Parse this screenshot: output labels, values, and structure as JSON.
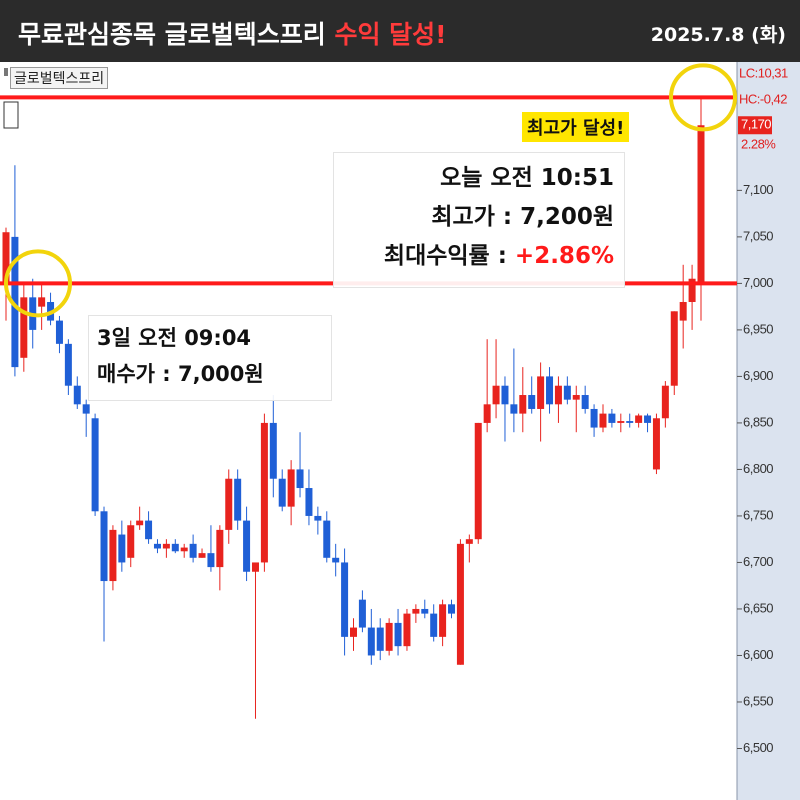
{
  "header": {
    "title_main": "무료관심종목 글로벌텍스프리",
    "title_highlight": "수익 달성!",
    "date": "2025.7.8 (화)"
  },
  "chart_data": {
    "type": "candlestick",
    "tab_label": "글로벌텍스프리",
    "ylim": [
      6450,
      7238
    ],
    "yticks": [
      {
        "value": 6500,
        "label": "6,500"
      },
      {
        "value": 6550,
        "label": "6,550"
      },
      {
        "value": 6600,
        "label": "6,600"
      },
      {
        "value": 6650,
        "label": "6,650"
      },
      {
        "value": 6700,
        "label": "6,700"
      },
      {
        "value": 6750,
        "label": "6,750"
      },
      {
        "value": 6800,
        "label": "6,800"
      },
      {
        "value": 6850,
        "label": "6,850"
      },
      {
        "value": 6900,
        "label": "6,900"
      },
      {
        "value": 6950,
        "label": "6,950"
      },
      {
        "value": 7000,
        "label": "7,000"
      },
      {
        "value": 7050,
        "label": "7,050"
      },
      {
        "value": 7100,
        "label": "7,100"
      }
    ],
    "up_color": "#e8231e",
    "down_color": "#1f5fd6",
    "series": {
      "open": [
        7000,
        7050,
        6920,
        6985,
        6975,
        6980,
        6960,
        6935,
        6890,
        6870,
        6855,
        6755,
        6680,
        6730,
        6705,
        6740,
        6745,
        6720,
        6715,
        6720,
        6712,
        6720,
        6705,
        6710,
        6695,
        6735,
        6790,
        6745,
        6690,
        6700,
        6850,
        6790,
        6760,
        6800,
        6780,
        6750,
        6745,
        6705,
        6700,
        6620,
        6660,
        6630,
        6630,
        6605,
        6635,
        6610,
        6645,
        6650,
        6645,
        6620,
        6655,
        6590,
        6720,
        6725,
        6850,
        6870,
        6890,
        6870,
        6860,
        6880,
        6865,
        6900,
        6870,
        6890,
        6875,
        6880,
        6865,
        6845,
        6860,
        6850,
        6852,
        6850,
        6858,
        6800,
        6855,
        6890,
        6960,
        6980,
        7000
      ],
      "high": [
        7060,
        7127,
        7000,
        7005,
        7000,
        6990,
        6965,
        6940,
        6900,
        6875,
        6860,
        6760,
        6740,
        6745,
        6745,
        6760,
        6755,
        6725,
        6725,
        6725,
        6720,
        6730,
        6715,
        6740,
        6740,
        6800,
        6800,
        6760,
        6700,
        6860,
        6880,
        6800,
        6810,
        6840,
        6800,
        6760,
        6755,
        6720,
        6715,
        6640,
        6670,
        6650,
        6640,
        6640,
        6650,
        6650,
        6655,
        6660,
        6655,
        6660,
        6660,
        6725,
        6730,
        6850,
        6940,
        6940,
        6900,
        6930,
        6910,
        6900,
        6915,
        6910,
        6900,
        6900,
        6890,
        6890,
        6870,
        6870,
        6865,
        6860,
        6860,
        6860,
        6860,
        6860,
        6895,
        6970,
        7020,
        7020,
        7200
      ],
      "low": [
        6960,
        6900,
        6905,
        6930,
        6950,
        6955,
        6925,
        6880,
        6865,
        6835,
        6750,
        6615,
        6670,
        6690,
        6695,
        6735,
        6720,
        6710,
        6705,
        6710,
        6705,
        6700,
        6705,
        6690,
        6670,
        6720,
        6735,
        6680,
        6532,
        6690,
        6770,
        6755,
        6740,
        6770,
        6740,
        6730,
        6700,
        6685,
        6600,
        6605,
        6625,
        6590,
        6595,
        6600,
        6600,
        6605,
        6635,
        6640,
        6615,
        6610,
        6640,
        6590,
        6700,
        6720,
        6840,
        6855,
        6830,
        6840,
        6840,
        6860,
        6830,
        6860,
        6850,
        6870,
        6840,
        6860,
        6835,
        6840,
        6845,
        6840,
        6845,
        6845,
        6840,
        6795,
        6845,
        6880,
        6930,
        6950,
        6960
      ],
      "close": [
        7055,
        6910,
        6985,
        6950,
        6985,
        6960,
        6935,
        6890,
        6870,
        6860,
        6755,
        6680,
        6735,
        6700,
        6740,
        6745,
        6725,
        6715,
        6720,
        6712,
        6716,
        6705,
        6710,
        6695,
        6735,
        6790,
        6745,
        6690,
        6700,
        6850,
        6790,
        6760,
        6800,
        6780,
        6750,
        6745,
        6705,
        6700,
        6620,
        6630,
        6630,
        6600,
        6605,
        6635,
        6610,
        6645,
        6650,
        6645,
        6620,
        6655,
        6645,
        6720,
        6725,
        6850,
        6870,
        6890,
        6870,
        6860,
        6880,
        6865,
        6900,
        6870,
        6890,
        6875,
        6880,
        6865,
        6845,
        6860,
        6850,
        6852,
        6850,
        6858,
        6850,
        6855,
        6890,
        6970,
        6980,
        7005,
        7170
      ]
    },
    "reference_lines": {
      "values": [
        7200,
        7000
      ],
      "color": "#ff1a1a"
    },
    "axis_notes": [
      "LC:10,31",
      "HC:-0,42"
    ],
    "last_price_label": "7,170",
    "last_change_label": "2.28%",
    "annotations": {
      "peak_badge": "최고가 달성!",
      "sell": {
        "time": "오늘 오전 10:51",
        "price": "최고가 : 7,200원",
        "return_label": "최대수익률 :",
        "return_value": "+2.86%"
      },
      "buy": {
        "time": "3일 오전 09:04",
        "price": "매수가 : 7,000원"
      }
    }
  }
}
